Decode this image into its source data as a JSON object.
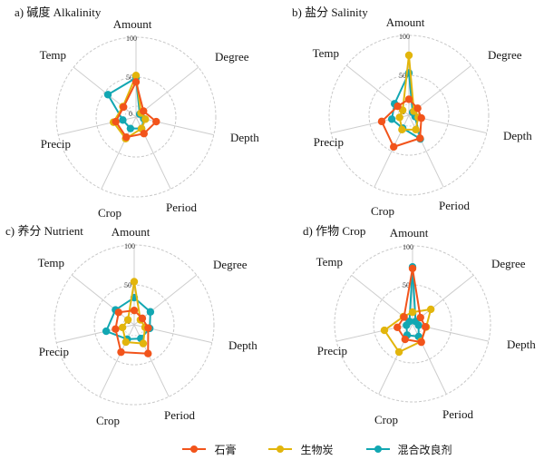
{
  "page": {
    "background": "#ffffff",
    "grid_color": "#c8c8c8"
  },
  "legend": {
    "items": [
      {
        "label": "石膏",
        "color": "#F2541B"
      },
      {
        "label": "生物炭",
        "color": "#E2B50C"
      },
      {
        "label": "混合改良剂",
        "color": "#12A7B2"
      }
    ]
  },
  "chart_data": [
    {
      "type": "radar",
      "title": "a) 碱度 Alkalinity",
      "axes": [
        "Amount",
        "Degree",
        "Depth",
        "Period",
        "Crop",
        "Precip",
        "Temp"
      ],
      "scale": {
        "min": 0,
        "max": 100,
        "ticks": [
          0,
          50,
          100
        ]
      },
      "grid": "dashed-circles",
      "series": [
        {
          "name": "石膏",
          "color": "#F2541B",
          "values": [
            44,
            12,
            26,
            23,
            28,
            26,
            20
          ]
        },
        {
          "name": "生物炭",
          "color": "#E2B50C",
          "values": [
            52,
            8,
            12,
            16,
            30,
            29,
            21
          ]
        },
        {
          "name": "混合改良剂",
          "color": "#12A7B2",
          "values": [
            49,
            6,
            10,
            16,
            16,
            17,
            45
          ]
        }
      ]
    },
    {
      "type": "radar",
      "title": "b) 盐分 Salinity",
      "axes": [
        "Amount",
        "Degree",
        "Depth",
        "Period",
        "Crop",
        "Precip",
        "Temp"
      ],
      "scale": {
        "min": 0,
        "max": 100,
        "ticks": [
          0,
          50,
          100
        ]
      },
      "grid": "dashed-circles",
      "series": [
        {
          "name": "石膏",
          "color": "#F2541B",
          "values": [
            20,
            14,
            16,
            32,
            44,
            35,
            18
          ]
        },
        {
          "name": "生物炭",
          "color": "#E2B50C",
          "values": [
            75,
            8,
            12,
            20,
            20,
            12,
            10
          ]
        },
        {
          "name": "混合改良剂",
          "color": "#12A7B2",
          "values": [
            53,
            6,
            8,
            33,
            18,
            22,
            23
          ]
        }
      ]
    },
    {
      "type": "radar",
      "title": "c) 养分 Nutrient",
      "axes": [
        "Amount",
        "Degree",
        "Depth",
        "Period",
        "Crop",
        "Precip",
        "Temp"
      ],
      "scale": {
        "min": 0,
        "max": 100,
        "ticks": [
          0,
          50,
          100
        ]
      },
      "grid": "dashed-circles",
      "series": [
        {
          "name": "石膏",
          "color": "#F2541B",
          "values": [
            18,
            13,
            18,
            40,
            38,
            24,
            25
          ]
        },
        {
          "name": "生物炭",
          "color": "#E2B50C",
          "values": [
            54,
            10,
            14,
            26,
            24,
            15,
            10
          ]
        },
        {
          "name": "混合改良剂",
          "color": "#12A7B2",
          "values": [
            34,
            26,
            20,
            19,
            20,
            36,
            30
          ]
        }
      ]
    },
    {
      "type": "radar",
      "title": "d) 作物 Crop",
      "axes": [
        "Amount",
        "Degree",
        "Depth",
        "Period",
        "Crop",
        "Precip",
        "Temp"
      ],
      "scale": {
        "min": 0,
        "max": 100,
        "ticks": [
          0,
          50,
          100
        ]
      },
      "grid": "dashed-circles",
      "series": [
        {
          "name": "石膏",
          "color": "#F2541B",
          "values": [
            71,
            13,
            17,
            26,
            22,
            20,
            14
          ]
        },
        {
          "name": "生物炭",
          "color": "#E2B50C",
          "values": [
            15,
            30,
            18,
            25,
            40,
            37,
            15
          ]
        },
        {
          "name": "混合改良剂",
          "color": "#12A7B2",
          "values": [
            73,
            5,
            8,
            18,
            16,
            8,
            5
          ]
        }
      ]
    }
  ]
}
